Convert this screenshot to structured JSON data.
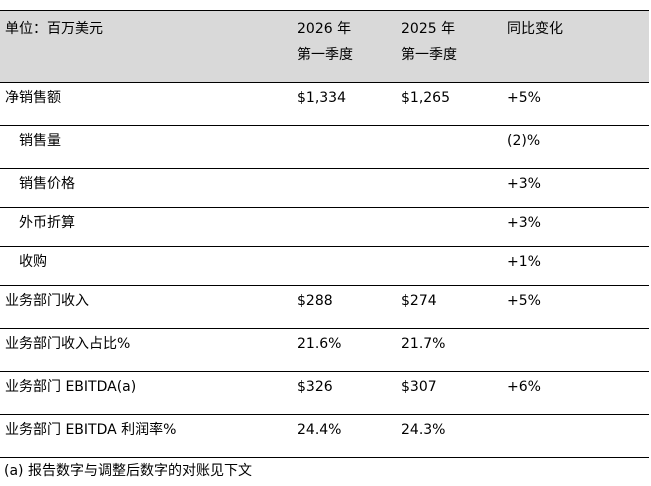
{
  "header": {
    "unit_label": "单位：百万美元",
    "col_2026": [
      "2026 年",
      "第一季度"
    ],
    "col_2025": [
      "2025 年",
      "第一季度"
    ],
    "col_change": "同比变化"
  },
  "rows": [
    {
      "label": "净销售额",
      "v2026": "$1,334",
      "v2025": "$1,265",
      "change": "+5%"
    },
    {
      "label": "销售量",
      "v2026": "",
      "v2025": "",
      "change": "(2)%"
    },
    {
      "label": "销售价格",
      "v2026": "",
      "v2025": "",
      "change": "+3%"
    },
    {
      "label": "外币折算",
      "v2026": "",
      "v2025": "",
      "change": "+3%"
    },
    {
      "label": "收购",
      "v2026": "",
      "v2025": "",
      "change": "+1%"
    },
    {
      "label": "业务部门收入",
      "v2026": "$288",
      "v2025": "$274",
      "change": "+5%"
    },
    {
      "label": "业务部门收入占比%",
      "v2026": "21.6%",
      "v2025": "21.7%",
      "change": ""
    },
    {
      "label": "业务部门 EBITDA(a)",
      "v2026": "$326",
      "v2025": "$307",
      "change": "+6%"
    },
    {
      "label": "业务部门 EBITDA 利润率%",
      "v2026": "24.4%",
      "v2025": "24.3%",
      "change": ""
    }
  ],
  "footnote": "(a) 报告数字与调整后数字的对账见下文"
}
